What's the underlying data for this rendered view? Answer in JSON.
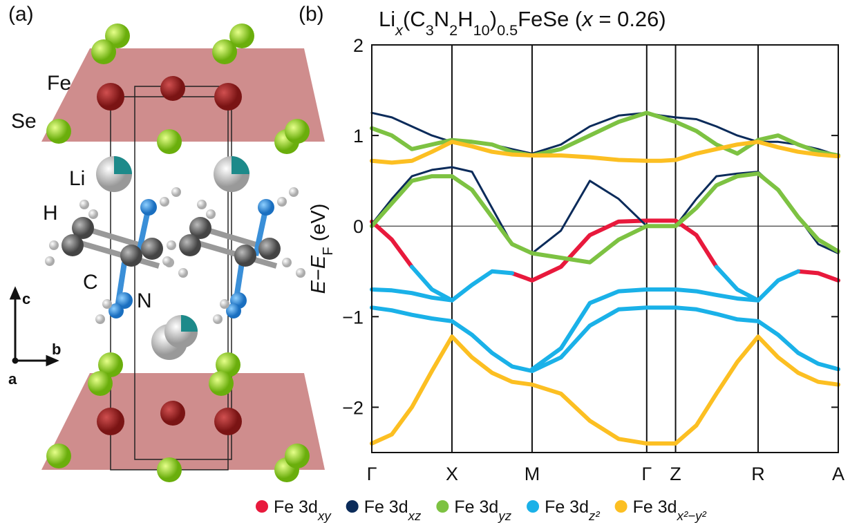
{
  "panel_a": {
    "label": "(a)",
    "atoms": [
      "Fe",
      "Se",
      "Li",
      "H",
      "C",
      "N"
    ],
    "axes": [
      "c",
      "b",
      "a"
    ]
  },
  "chart_data": {
    "type": "band",
    "panel_label": "(b)",
    "title": [
      {
        "text": "Li"
      },
      {
        "text": "x",
        "sub": true,
        "italic": true
      },
      {
        "text": "(C"
      },
      {
        "text": "3",
        "sub": true
      },
      {
        "text": "N"
      },
      {
        "text": "2",
        "sub": true
      },
      {
        "text": "H"
      },
      {
        "text": "10",
        "sub": true
      },
      {
        "text": ")"
      },
      {
        "text": "0.5",
        "sub": true
      },
      {
        "text": "FeSe ("
      },
      {
        "text": "x",
        "italic": true
      },
      {
        "text": " = 0.26)"
      }
    ],
    "ylabel": [
      {
        "text": "E",
        "italic": true
      },
      {
        "text": "−"
      },
      {
        "text": "E",
        "italic": true
      },
      {
        "text": "F",
        "sub": true
      },
      {
        "text": " (eV)"
      }
    ],
    "xlim": [
      0,
      5.82
    ],
    "ylim": [
      -2.5,
      2
    ],
    "xticks": [
      {
        "value": 0,
        "label": "Γ"
      },
      {
        "value": 1,
        "label": "X"
      },
      {
        "value": 2,
        "label": "M"
      },
      {
        "value": 3.43,
        "label": "Γ"
      },
      {
        "value": 3.79,
        "label": "Z"
      },
      {
        "value": 4.82,
        "label": "R"
      },
      {
        "value": 5.82,
        "label": "A"
      }
    ],
    "yticks": [
      {
        "value": -2,
        "label": "−2"
      },
      {
        "value": -1,
        "label": "−1"
      },
      0,
      1,
      2
    ],
    "zero_line": true,
    "x": [
      0,
      0.25,
      0.5,
      0.75,
      1,
      1.25,
      1.5,
      1.75,
      2,
      2.36,
      2.72,
      3.08,
      3.43,
      3.61,
      3.79,
      4.05,
      4.3,
      4.56,
      4.82,
      5.07,
      5.32,
      5.57,
      5.82
    ],
    "series": [
      {
        "name": "Fe 3d",
        "sub": "xy",
        "color": "#e8193c",
        "bands": [
          [
            0.05,
            -0.15,
            -0.45,
            null,
            null,
            null,
            null,
            -0.52,
            -0.6,
            -0.45,
            -0.1,
            0.05,
            0.06,
            0.06,
            0.06,
            -0.1,
            -0.45,
            null,
            null,
            null,
            -0.5,
            -0.52,
            -0.6
          ]
        ]
      },
      {
        "name": "Fe 3d",
        "sub": "xz",
        "color": "#0b2b5a",
        "bands": [
          [
            1.25,
            1.2,
            1.1,
            1.0,
            0.93,
            0.93,
            0.9,
            0.85,
            0.8,
            0.9,
            1.1,
            1.22,
            1.25,
            1.22,
            1.2,
            1.18,
            1.1,
            1.0,
            0.93,
            0.93,
            0.9,
            0.85,
            0.78
          ],
          [
            0.02,
            0.3,
            0.55,
            0.62,
            0.65,
            0.6,
            0.2,
            -0.2,
            -0.3,
            -0.05,
            0.5,
            0.3,
            0.0,
            0.0,
            0.0,
            0.3,
            0.55,
            0.58,
            0.6,
            0.4,
            0.1,
            -0.2,
            -0.3
          ]
        ]
      },
      {
        "name": "Fe 3d",
        "sub": "yz",
        "color": "#7dc242",
        "bands": [
          [
            0.0,
            0.25,
            0.5,
            0.55,
            0.55,
            0.4,
            0.1,
            -0.2,
            -0.3,
            -0.35,
            -0.4,
            -0.15,
            0.0,
            0.0,
            0.0,
            0.2,
            0.45,
            0.55,
            0.58,
            0.4,
            0.1,
            -0.15,
            -0.28
          ],
          [
            1.08,
            1.0,
            0.85,
            0.9,
            0.95,
            0.93,
            0.9,
            0.82,
            0.78,
            0.85,
            1.0,
            1.15,
            1.25,
            1.2,
            1.15,
            1.05,
            0.9,
            0.8,
            0.95,
            1.0,
            0.9,
            0.82,
            0.78
          ]
        ]
      },
      {
        "name": "Fe 3d",
        "sub": "z²",
        "color": "#1ab1e8",
        "bands": [
          [
            -0.9,
            -0.93,
            -0.98,
            -1.02,
            -1.05,
            -1.2,
            -1.4,
            -1.55,
            -1.6,
            -1.45,
            -1.1,
            -0.92,
            -0.9,
            -0.9,
            -0.9,
            -0.92,
            -0.97,
            -1.03,
            -1.05,
            -1.2,
            -1.4,
            -1.52,
            -1.58
          ],
          [
            null,
            null,
            -0.45,
            -0.7,
            -0.82,
            -0.65,
            -0.5,
            -0.52,
            null,
            null,
            null,
            null,
            null,
            null,
            null,
            null,
            -0.45,
            -0.7,
            -0.82,
            -0.6,
            -0.5,
            null,
            null
          ],
          [
            -0.7,
            -0.71,
            -0.74,
            -0.79,
            -0.82,
            null,
            null,
            null,
            -1.58,
            -1.35,
            -0.85,
            -0.72,
            -0.7,
            -0.7,
            -0.7,
            -0.72,
            -0.76,
            -0.8,
            -0.82,
            null,
            null,
            null,
            null
          ]
        ]
      },
      {
        "name": "Fe 3d",
        "sub": "x²−y²",
        "color": "#fcbf22",
        "bands": [
          [
            -2.4,
            -2.3,
            -2.0,
            -1.6,
            -1.22,
            -1.45,
            -1.62,
            -1.72,
            -1.75,
            -1.85,
            -2.15,
            -2.35,
            -2.4,
            -2.4,
            -2.4,
            -2.2,
            -1.85,
            -1.5,
            -1.22,
            -1.45,
            -1.62,
            -1.72,
            -1.75
          ],
          [
            0.72,
            0.7,
            0.72,
            0.82,
            0.93,
            0.88,
            0.82,
            0.79,
            0.78,
            0.78,
            0.76,
            0.73,
            0.72,
            0.72,
            0.73,
            0.8,
            0.85,
            0.9,
            0.93,
            0.87,
            0.82,
            0.79,
            0.77
          ]
        ]
      }
    ]
  }
}
